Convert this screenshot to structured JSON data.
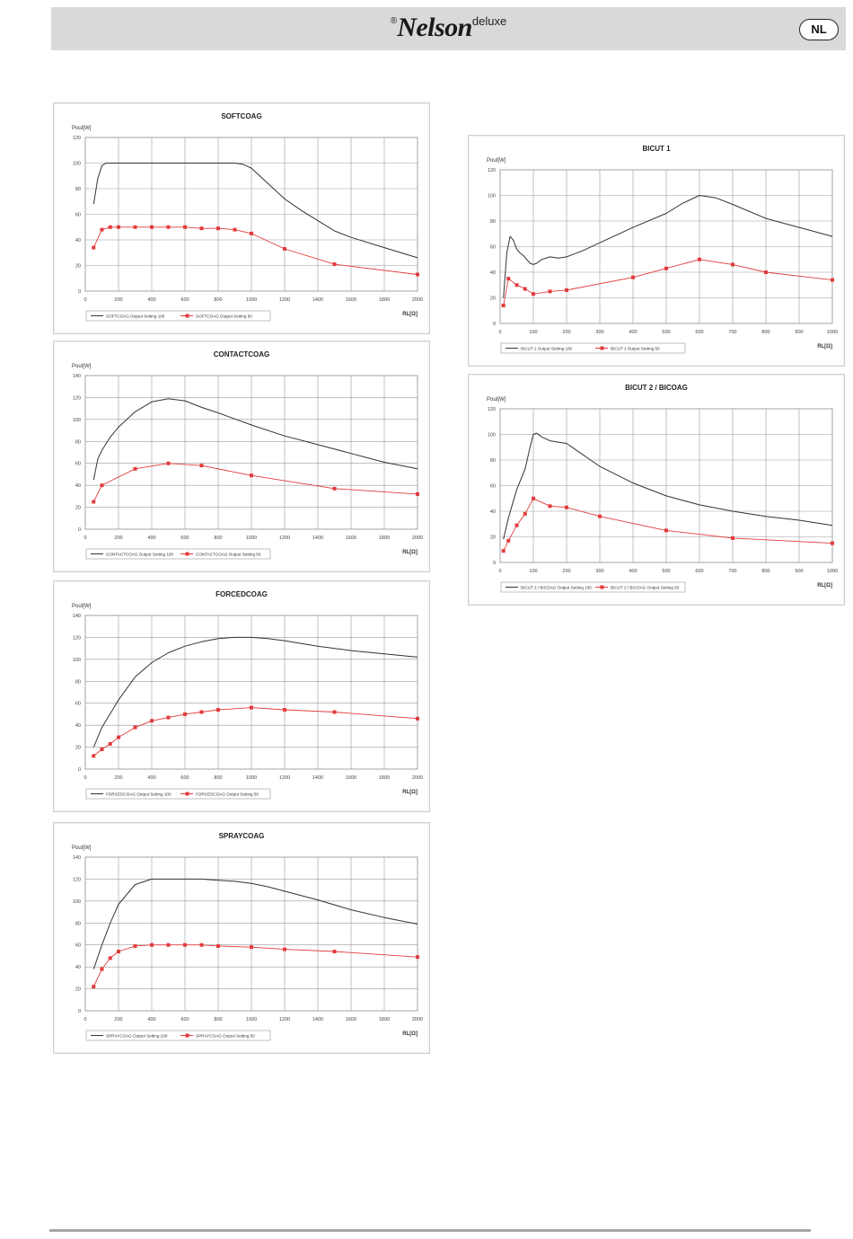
{
  "header": {
    "reg_mark": "®",
    "brand": "Nelson",
    "brand_suffix": "deluxe",
    "lang": "NL"
  },
  "chart_data": [
    {
      "type": "line",
      "title": "SOFTCOAG",
      "ylabel": "Pout[W]",
      "xlabel": "RL[Ω]",
      "xlim": [
        0,
        2000
      ],
      "ylim": [
        0,
        120
      ],
      "xticks": [
        "0",
        "200",
        "400",
        "600",
        "800",
        "1000",
        "1200",
        "1400",
        "1600",
        "1800",
        "2000"
      ],
      "yticks": [
        "0",
        "20",
        "40",
        "60",
        "80",
        "100",
        "120"
      ],
      "grid": true,
      "legend_position": "bottom-left",
      "series": [
        {
          "name": "SOFTCOAG Output Setting 100",
          "color": "#333333",
          "markers": false,
          "x": [
            50,
            75,
            100,
            125,
            150,
            200,
            400,
            600,
            800,
            900,
            950,
            1000,
            1100,
            1200,
            1300,
            1400,
            1500,
            1600,
            1800,
            2000
          ],
          "y": [
            68,
            88,
            98,
            100,
            100,
            100,
            100,
            100,
            100,
            100,
            99,
            96,
            84,
            72,
            63,
            55,
            47,
            42,
            34,
            26
          ]
        },
        {
          "name": "SOFTCOAG Output Setting 50",
          "color": "#e23b3b",
          "markers": true,
          "x": [
            50,
            100,
            150,
            200,
            300,
            400,
            500,
            600,
            700,
            800,
            900,
            1000,
            1200,
            1500,
            2000
          ],
          "y": [
            34,
            48,
            50,
            50,
            50,
            50,
            50,
            50,
            49,
            49,
            48,
            45,
            33,
            21,
            13
          ]
        }
      ]
    },
    {
      "type": "line",
      "title": "CONTACTCOAG",
      "ylabel": "Pout[W]",
      "xlabel": "RL[Ω]",
      "xlim": [
        0,
        2000
      ],
      "ylim": [
        0,
        140
      ],
      "xticks": [
        "0",
        "200",
        "400",
        "600",
        "800",
        "1000",
        "1200",
        "1400",
        "1600",
        "1800",
        "2000"
      ],
      "yticks": [
        "0",
        "20",
        "40",
        "60",
        "80",
        "100",
        "120",
        "140"
      ],
      "grid": true,
      "legend_position": "bottom-left",
      "series": [
        {
          "name": "CONTACTCOAG Output Setting 100",
          "color": "#333333",
          "markers": false,
          "x": [
            50,
            75,
            100,
            150,
            200,
            300,
            400,
            500,
            600,
            700,
            800,
            1000,
            1200,
            1400,
            1600,
            1800,
            2000
          ],
          "y": [
            45,
            64,
            72,
            84,
            93,
            107,
            116,
            119,
            117,
            111,
            106,
            95,
            85,
            77,
            69,
            61,
            55
          ]
        },
        {
          "name": "CONTACTCOAG Output Setting 50",
          "color": "#e23b3b",
          "markers": true,
          "x": [
            50,
            100,
            300,
            500,
            700,
            1000,
            1500,
            2000
          ],
          "y": [
            25,
            40,
            55,
            60,
            58,
            49,
            37,
            32
          ]
        }
      ]
    },
    {
      "type": "line",
      "title": "FORCEDCOAG",
      "ylabel": "Pout[W]",
      "xlabel": "RL[Ω]",
      "xlim": [
        0,
        2000
      ],
      "ylim": [
        0,
        140
      ],
      "xticks": [
        "0",
        "200",
        "400",
        "600",
        "800",
        "1000",
        "1200",
        "1400",
        "1600",
        "1800",
        "2000"
      ],
      "yticks": [
        "0",
        "20",
        "40",
        "60",
        "80",
        "100",
        "120",
        "140"
      ],
      "grid": true,
      "legend_position": "bottom-left",
      "series": [
        {
          "name": "FORCEDCOAG Output Setting 100",
          "color": "#333333",
          "markers": false,
          "x": [
            50,
            100,
            200,
            300,
            400,
            500,
            600,
            700,
            800,
            900,
            1000,
            1100,
            1200,
            1400,
            1600,
            1800,
            2000
          ],
          "y": [
            20,
            38,
            63,
            84,
            97,
            106,
            112,
            116,
            119,
            120,
            120,
            119,
            117,
            112,
            108,
            105,
            102
          ]
        },
        {
          "name": "FORCEDCOAG Output Setting 50",
          "color": "#e23b3b",
          "markers": true,
          "x": [
            50,
            100,
            150,
            200,
            300,
            400,
            500,
            600,
            700,
            800,
            1000,
            1200,
            1500,
            2000
          ],
          "y": [
            12,
            18,
            23,
            29,
            38,
            44,
            47,
            50,
            52,
            54,
            56,
            54,
            52,
            46
          ]
        }
      ]
    },
    {
      "type": "line",
      "title": "SPRAYCOAG",
      "ylabel": "Pout[W]",
      "xlabel": "RL[Ω]",
      "xlim": [
        0,
        2000
      ],
      "ylim": [
        0,
        140
      ],
      "xticks": [
        "0",
        "200",
        "400",
        "600",
        "800",
        "1000",
        "1200",
        "1400",
        "1600",
        "1800",
        "2000"
      ],
      "yticks": [
        "0",
        "20",
        "40",
        "60",
        "80",
        "100",
        "120",
        "140"
      ],
      "grid": true,
      "legend_position": "bottom-left",
      "series": [
        {
          "name": "SPRAYCOAG Output Setting 100",
          "color": "#333333",
          "markers": false,
          "x": [
            50,
            100,
            150,
            200,
            300,
            400,
            500,
            600,
            700,
            800,
            900,
            1000,
            1100,
            1200,
            1400,
            1600,
            1800,
            2000
          ],
          "y": [
            38,
            60,
            80,
            97,
            115,
            120,
            120,
            120,
            120,
            119,
            118,
            116,
            113,
            109,
            101,
            92,
            85,
            79
          ]
        },
        {
          "name": "SPRAYCOAG Output Setting 50",
          "color": "#e23b3b",
          "markers": true,
          "x": [
            50,
            100,
            150,
            200,
            300,
            400,
            500,
            600,
            700,
            800,
            1000,
            1200,
            1500,
            2000
          ],
          "y": [
            22,
            38,
            48,
            54,
            59,
            60,
            60,
            60,
            60,
            59,
            58,
            56,
            54,
            49
          ]
        }
      ]
    },
    {
      "type": "line",
      "title": "BICUT 1",
      "ylabel": "Pout[W]",
      "xlabel": "RL[Ω]",
      "xlim": [
        0,
        1000
      ],
      "ylim": [
        0,
        120
      ],
      "xticks": [
        "0",
        "100",
        "200",
        "300",
        "400",
        "500",
        "600",
        "700",
        "800",
        "900",
        "1000"
      ],
      "yticks": [
        "0",
        "20",
        "40",
        "60",
        "80",
        "100",
        "120"
      ],
      "grid": true,
      "legend_position": "bottom-left",
      "series": [
        {
          "name": "BICUT 1 Output Setting 100",
          "color": "#333333",
          "markers": false,
          "x": [
            10,
            20,
            30,
            40,
            50,
            60,
            70,
            80,
            90,
            100,
            110,
            125,
            150,
            175,
            200,
            250,
            300,
            400,
            500,
            550,
            600,
            650,
            700,
            800,
            900,
            1000
          ],
          "y": [
            20,
            55,
            68,
            65,
            58,
            55,
            53,
            50,
            47,
            46,
            47,
            50,
            52,
            51,
            52,
            57,
            63,
            75,
            86,
            94,
            100,
            98,
            93,
            82,
            75,
            68
          ]
        },
        {
          "name": "BICUT 1 Output Setting 50",
          "color": "#e23b3b",
          "markers": true,
          "x": [
            10,
            25,
            50,
            75,
            100,
            150,
            200,
            400,
            500,
            600,
            700,
            800,
            1000
          ],
          "y": [
            14,
            35,
            30,
            27,
            23,
            25,
            26,
            36,
            43,
            50,
            46,
            40,
            34
          ]
        }
      ]
    },
    {
      "type": "line",
      "title": "BICUT 2 / BICOAG",
      "ylabel": "Pout[W]",
      "xlabel": "RL[Ω]",
      "xlim": [
        0,
        1000
      ],
      "ylim": [
        0,
        120
      ],
      "xticks": [
        "0",
        "100",
        "200",
        "300",
        "400",
        "500",
        "600",
        "700",
        "800",
        "900",
        "1000"
      ],
      "yticks": [
        "0",
        "20",
        "40",
        "60",
        "80",
        "100",
        "120"
      ],
      "grid": true,
      "legend_position": "bottom-left",
      "series": [
        {
          "name": "BICUT 2 / BICOAG Output Setting 100",
          "color": "#333333",
          "markers": false,
          "x": [
            10,
            25,
            50,
            75,
            90,
            100,
            110,
            125,
            150,
            175,
            200,
            250,
            300,
            400,
            500,
            600,
            700,
            800,
            900,
            1000
          ],
          "y": [
            18,
            35,
            57,
            73,
            90,
            100,
            101,
            98,
            95,
            94,
            93,
            84,
            75,
            62,
            52,
            45,
            40,
            36,
            33,
            29
          ]
        },
        {
          "name": "BICUT 2 / BICOAG Output Setting 50",
          "color": "#e23b3b",
          "markers": true,
          "x": [
            10,
            25,
            50,
            75,
            100,
            150,
            200,
            300,
            500,
            700,
            1000
          ],
          "y": [
            9,
            17,
            29,
            38,
            50,
            44,
            43,
            36,
            25,
            19,
            15
          ]
        }
      ]
    }
  ]
}
